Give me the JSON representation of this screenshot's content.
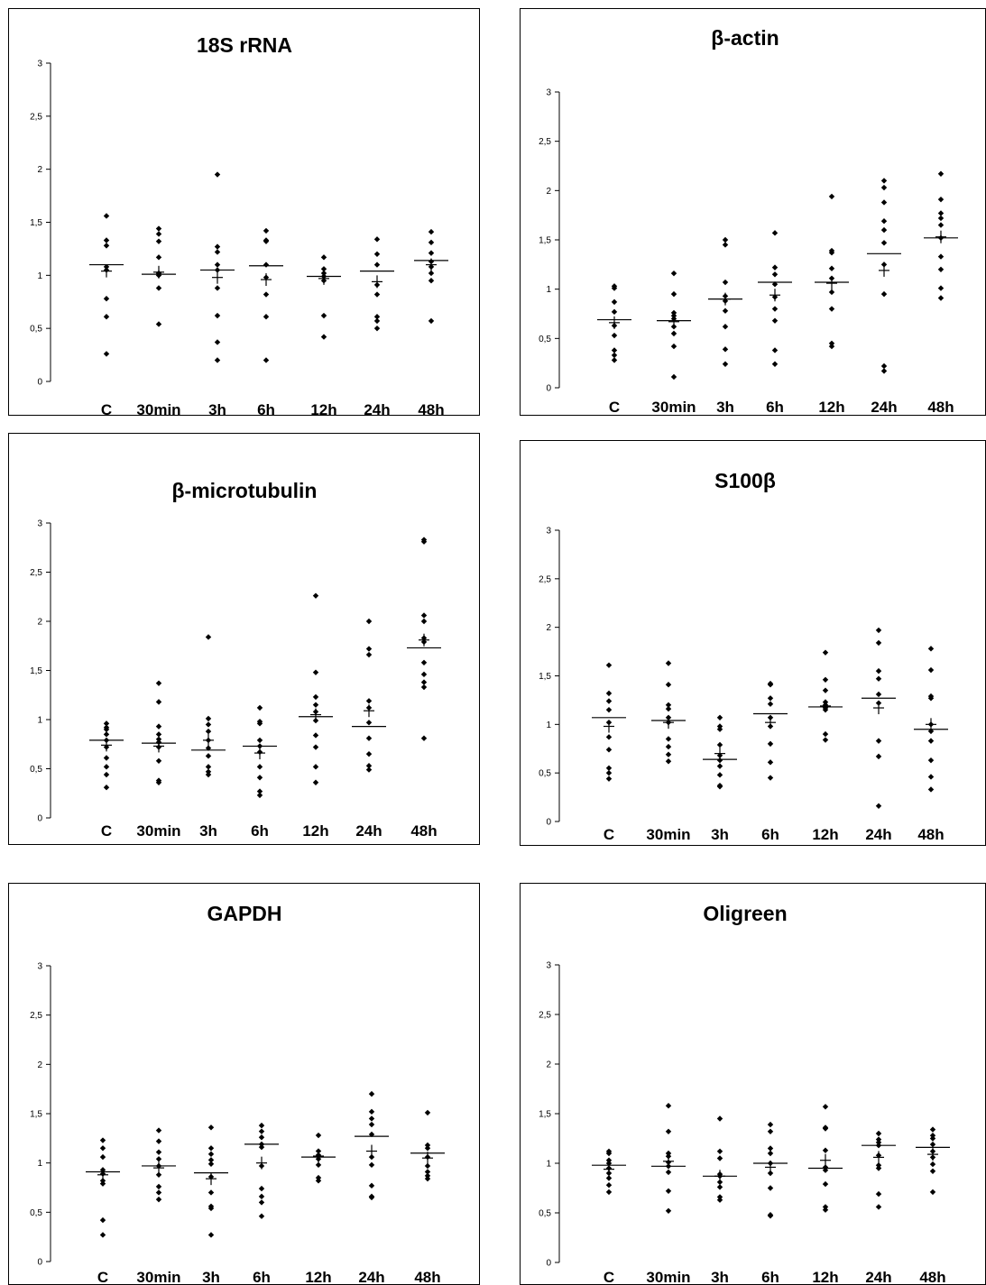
{
  "chart_data": [
    {
      "type": "scatter",
      "title": "18S rRNA",
      "categories": [
        "C",
        "30min",
        "3h",
        "6h",
        "12h",
        "24h",
        "48h"
      ],
      "ytick_labels": [
        "0",
        "0,5",
        "1",
        "1,5",
        "2",
        "2,5",
        "3"
      ],
      "ylim": [
        0,
        3
      ],
      "points": [
        [
          1.56,
          1.33,
          1.28,
          1.08,
          1.05,
          0.78,
          0.61,
          0.26
        ],
        [
          1.44,
          1.39,
          1.32,
          1.17,
          1.02,
          1.0,
          0.88,
          0.54
        ],
        [
          1.95,
          1.27,
          1.22,
          1.1,
          1.05,
          0.88,
          0.62,
          0.37,
          0.2
        ],
        [
          1.42,
          1.33,
          1.32,
          1.1,
          0.98,
          0.82,
          0.61,
          0.2
        ],
        [
          1.17,
          1.06,
          1.02,
          0.99,
          0.95,
          0.62,
          0.42
        ],
        [
          1.34,
          1.2,
          1.1,
          0.91,
          0.82,
          0.61,
          0.57,
          0.5
        ],
        [
          1.41,
          1.31,
          1.21,
          1.13,
          1.08,
          1.02,
          0.95,
          0.57
        ]
      ],
      "medians": [
        1.1,
        1.01,
        1.05,
        1.09,
        0.99,
        1.04,
        1.14
      ],
      "means": [
        1.04,
        1.03,
        0.98,
        0.96,
        0.97,
        0.94,
        1.1
      ]
    },
    {
      "type": "scatter",
      "title": "β-actin",
      "categories": [
        "C",
        "30min",
        "3h",
        "6h",
        "12h",
        "24h",
        "48h"
      ],
      "ytick_labels": [
        "0",
        "0,5",
        "1",
        "1,5",
        "2",
        "2,5",
        "3"
      ],
      "ylim": [
        0,
        3
      ],
      "points": [
        [
          1.03,
          1.01,
          0.87,
          0.77,
          0.63,
          0.53,
          0.38,
          0.33,
          0.28
        ],
        [
          1.16,
          0.95,
          0.76,
          0.73,
          0.7,
          0.62,
          0.55,
          0.42,
          0.11
        ],
        [
          1.5,
          1.45,
          1.07,
          0.93,
          0.88,
          0.78,
          0.62,
          0.39,
          0.24
        ],
        [
          1.57,
          1.22,
          1.15,
          1.05,
          0.92,
          0.8,
          0.68,
          0.38,
          0.24
        ],
        [
          1.94,
          1.39,
          1.37,
          1.21,
          1.11,
          0.97,
          0.8,
          0.45,
          0.42
        ],
        [
          2.1,
          2.03,
          1.88,
          1.69,
          1.6,
          1.47,
          1.25,
          0.95,
          0.22,
          0.17
        ],
        [
          2.17,
          1.91,
          1.77,
          1.72,
          1.65,
          1.52,
          1.33,
          1.2,
          1.01,
          0.91
        ]
      ],
      "medians": [
        0.69,
        0.68,
        0.9,
        1.07,
        1.07,
        1.36,
        1.52
      ],
      "means": [
        0.66,
        0.67,
        0.9,
        0.94,
        1.06,
        1.19,
        1.53
      ]
    },
    {
      "type": "scatter",
      "title": "β-microtubulin",
      "categories": [
        "C",
        "30min",
        "3h",
        "6h",
        "12h",
        "24h",
        "48h"
      ],
      "ytick_labels": [
        "0",
        "0,5",
        "1",
        "1,5",
        "2",
        "2,5",
        "3"
      ],
      "ylim": [
        0,
        3
      ],
      "points": [
        [
          0.96,
          0.92,
          0.9,
          0.85,
          0.79,
          0.72,
          0.61,
          0.52,
          0.44,
          0.31
        ],
        [
          1.37,
          1.18,
          0.93,
          0.85,
          0.8,
          0.77,
          0.72,
          0.58,
          0.38,
          0.36
        ],
        [
          1.84,
          1.01,
          0.95,
          0.88,
          0.79,
          0.71,
          0.63,
          0.52,
          0.47,
          0.44
        ],
        [
          1.12,
          0.98,
          0.96,
          0.79,
          0.73,
          0.67,
          0.52,
          0.41,
          0.27,
          0.23
        ],
        [
          2.26,
          1.48,
          1.23,
          1.15,
          1.08,
          0.99,
          0.84,
          0.72,
          0.52,
          0.36
        ],
        [
          2.0,
          1.72,
          1.66,
          1.19,
          1.12,
          0.97,
          0.81,
          0.65,
          0.53,
          0.49
        ],
        [
          2.83,
          2.81,
          2.06,
          2.0,
          1.83,
          1.79,
          1.58,
          1.46,
          1.38,
          1.33,
          0.81
        ]
      ],
      "medians": [
        0.79,
        0.76,
        0.69,
        0.73,
        1.03,
        0.93,
        1.73
      ],
      "means": [
        0.74,
        0.73,
        0.79,
        0.66,
        1.05,
        1.09,
        1.81
      ]
    },
    {
      "type": "scatter",
      "title": "S100β",
      "categories": [
        "C",
        "30min",
        "3h",
        "6h",
        "12h",
        "24h",
        "48h"
      ],
      "ytick_labels": [
        "0",
        "0,5",
        "1",
        "1,5",
        "2",
        "2,5",
        "3"
      ],
      "ylim": [
        0,
        3
      ],
      "points": [
        [
          1.61,
          1.32,
          1.24,
          1.15,
          1.02,
          0.87,
          0.74,
          0.55,
          0.5,
          0.44
        ],
        [
          1.63,
          1.41,
          1.2,
          1.16,
          1.07,
          1.02,
          0.85,
          0.77,
          0.69,
          0.62
        ],
        [
          1.07,
          0.98,
          0.95,
          0.79,
          0.68,
          0.63,
          0.57,
          0.48,
          0.37,
          0.36
        ],
        [
          1.42,
          1.41,
          1.27,
          1.21,
          1.07,
          0.98,
          0.8,
          0.61,
          0.45
        ],
        [
          1.74,
          1.46,
          1.35,
          1.23,
          1.2,
          1.17,
          1.15,
          0.9,
          0.84
        ],
        [
          1.97,
          1.84,
          1.55,
          1.47,
          1.31,
          1.22,
          0.83,
          0.67,
          0.16
        ],
        [
          1.78,
          1.56,
          1.29,
          1.27,
          1.0,
          0.93,
          0.83,
          0.63,
          0.46,
          0.33
        ]
      ],
      "medians": [
        1.07,
        1.04,
        0.64,
        1.11,
        1.18,
        1.27,
        0.95
      ],
      "means": [
        0.98,
        1.02,
        0.7,
        1.02,
        1.19,
        1.17,
        1.0
      ]
    },
    {
      "type": "scatter",
      "title": "GAPDH",
      "categories": [
        "C",
        "30min",
        "3h",
        "6h",
        "12h",
        "24h",
        "48h"
      ],
      "ytick_labels": [
        "0",
        "0,5",
        "1",
        "1,5",
        "2",
        "2,5",
        "3"
      ],
      "ylim": [
        0,
        3
      ],
      "points": [
        [
          1.23,
          1.15,
          1.06,
          0.93,
          0.89,
          0.82,
          0.79,
          0.42,
          0.27
        ],
        [
          1.33,
          1.22,
          1.11,
          1.04,
          0.97,
          0.88,
          0.76,
          0.7,
          0.63
        ],
        [
          1.36,
          1.15,
          1.09,
          1.03,
          0.99,
          0.86,
          0.7,
          0.56,
          0.54,
          0.27
        ],
        [
          1.38,
          1.32,
          1.26,
          1.19,
          1.16,
          0.97,
          0.74,
          0.66,
          0.6,
          0.46
        ],
        [
          1.28,
          1.12,
          1.08,
          1.04,
          0.98,
          0.85,
          0.82
        ],
        [
          1.7,
          1.52,
          1.45,
          1.39,
          1.29,
          1.06,
          0.98,
          0.77,
          0.66,
          0.65
        ],
        [
          1.51,
          1.18,
          1.15,
          1.06,
          0.97,
          0.91,
          0.87,
          0.84
        ]
      ],
      "medians": [
        0.91,
        0.97,
        0.9,
        1.19,
        1.06,
        1.27,
        1.1
      ],
      "means": [
        0.88,
        0.95,
        0.84,
        1.0,
        1.07,
        1.12,
        1.05
      ]
    },
    {
      "type": "scatter",
      "title": "Oligreen",
      "categories": [
        "C",
        "30min",
        "3h",
        "6h",
        "12h",
        "24h",
        "48h"
      ],
      "ytick_labels": [
        "0",
        "0,5",
        "1",
        "1,5",
        "2",
        "2,5",
        "3"
      ],
      "ylim": [
        0,
        3
      ],
      "points": [
        [
          1.12,
          1.1,
          1.03,
          1.0,
          0.95,
          0.9,
          0.85,
          0.78,
          0.71
        ],
        [
          1.58,
          1.32,
          1.1,
          1.07,
          1.01,
          0.97,
          0.91,
          0.72,
          0.52
        ],
        [
          1.45,
          1.12,
          1.05,
          0.89,
          0.87,
          0.81,
          0.76,
          0.66,
          0.63
        ],
        [
          1.39,
          1.32,
          1.15,
          1.1,
          1.0,
          0.9,
          0.75,
          0.48,
          0.47
        ],
        [
          1.57,
          1.36,
          1.35,
          1.13,
          0.96,
          0.93,
          0.79,
          0.56,
          0.53
        ],
        [
          1.3,
          1.24,
          1.21,
          1.18,
          1.08,
          0.98,
          0.95,
          0.69,
          0.56
        ],
        [
          1.34,
          1.28,
          1.25,
          1.19,
          1.12,
          1.06,
          0.99,
          0.92,
          0.71
        ]
      ],
      "medians": [
        0.98,
        0.97,
        0.87,
        1.0,
        0.95,
        1.18,
        1.16
      ],
      "means": [
        0.94,
        1.02,
        0.87,
        0.96,
        1.03,
        1.06,
        1.09
      ]
    }
  ]
}
